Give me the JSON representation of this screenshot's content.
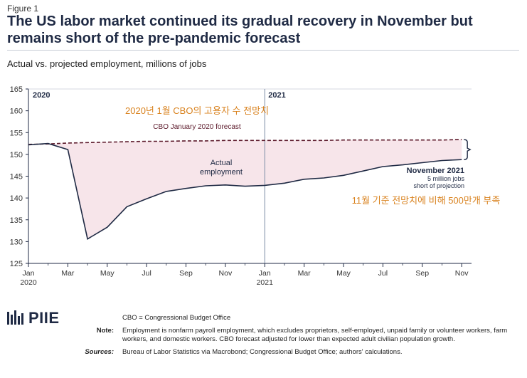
{
  "figure_label": "Figure 1",
  "title": "The US labor market continued its gradual recovery in November but remains short of the pre-pandemic forecast",
  "subtitle": "Actual vs. projected employment, millions of jobs",
  "chart_data": {
    "type": "line",
    "ylim": [
      125,
      165
    ],
    "y_ticks": [
      125,
      130,
      135,
      140,
      145,
      150,
      155,
      160,
      165
    ],
    "x_ticks": [
      {
        "month_index": 0,
        "label": "Jan",
        "year": "2020"
      },
      {
        "month_index": 2,
        "label": "Mar"
      },
      {
        "month_index": 4,
        "label": "May"
      },
      {
        "month_index": 6,
        "label": "Jul"
      },
      {
        "month_index": 8,
        "label": "Sep"
      },
      {
        "month_index": 10,
        "label": "Nov"
      },
      {
        "month_index": 12,
        "label": "Jan",
        "year": "2021"
      },
      {
        "month_index": 14,
        "label": "Mar"
      },
      {
        "month_index": 16,
        "label": "May"
      },
      {
        "month_index": 18,
        "label": "Jul"
      },
      {
        "month_index": 20,
        "label": "Sep"
      },
      {
        "month_index": 22,
        "label": "Nov"
      }
    ],
    "year_labels": [
      {
        "month_index": 0,
        "label": "2020"
      },
      {
        "month_index": 12,
        "label": "2021"
      }
    ],
    "divider_month_index": 12,
    "series": [
      {
        "name": "Actual employment",
        "style": "solid",
        "color": "#1f2a44",
        "x": [
          0,
          1,
          2,
          3,
          4,
          5,
          6,
          7,
          8,
          9,
          10,
          11,
          12,
          13,
          14,
          15,
          16,
          17,
          18,
          19,
          20,
          21,
          22
        ],
        "values": [
          152.2,
          152.5,
          151.1,
          130.6,
          133.3,
          138.0,
          139.8,
          141.5,
          142.2,
          142.8,
          143.0,
          142.7,
          142.9,
          143.4,
          144.3,
          144.6,
          145.2,
          146.2,
          147.2,
          147.6,
          148.1,
          148.6,
          148.8
        ]
      },
      {
        "name": "CBO January 2020 forecast",
        "style": "dashed",
        "color": "#5c1a2b",
        "x": [
          0,
          1,
          2,
          3,
          4,
          5,
          6,
          7,
          8,
          9,
          10,
          11,
          12,
          13,
          14,
          15,
          16,
          17,
          18,
          19,
          20,
          21,
          22
        ],
        "values": [
          152.3,
          152.4,
          152.6,
          152.7,
          152.8,
          152.9,
          153.0,
          153.0,
          153.1,
          153.1,
          153.2,
          153.2,
          153.2,
          153.2,
          153.2,
          153.2,
          153.3,
          153.3,
          153.3,
          153.3,
          153.3,
          153.3,
          153.4
        ]
      }
    ],
    "fill_color": "#f7e5ea",
    "annotations": {
      "korean_forecast": "2020년 1월 CBO의 고용자 수 전망치",
      "cbo_forecast": "CBO January 2020 forecast",
      "actual_line1": "Actual",
      "actual_line2": "employment",
      "nov2021": "November 2021",
      "gap_line1": "5 million jobs",
      "gap_line2": "short of projection",
      "korean_gap": "11월 기준 전망치에 비해 500만개 부족",
      "year_2020": "2020",
      "year_2021": "2021"
    },
    "colors": {
      "accent_orange": "#d9821e",
      "forecast_label": "#5c1a2b",
      "axis": "#1f2a44",
      "divider": "#7a8aa3"
    }
  },
  "logo": {
    "name": "PIIE"
  },
  "notes": {
    "cbo_def": "CBO = Congressional Budget Office",
    "note_label": "Note:",
    "note_text": "Employment is nonfarm payroll employment, which excludes proprietors, self-employed, unpaid family or volunteer workers, farm workers, and domestic workers. CBO forecast adjusted for lower than expected adult civilian population growth.",
    "sources_label": "Sources:",
    "sources_text": "Bureau of Labor Statistics via Macrobond; Congressional Budget Office; authors' calculations."
  }
}
